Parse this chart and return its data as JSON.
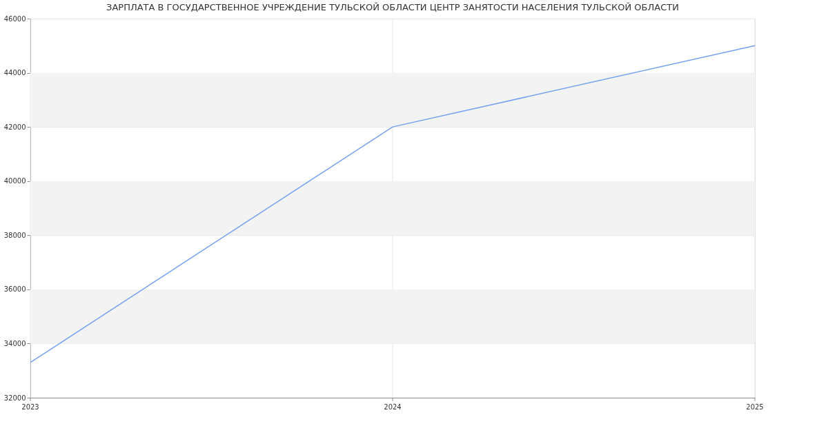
{
  "chart_data": {
    "type": "line",
    "title": "ЗАРПЛАТА В ГОСУДАРСТВЕННОЕ УЧРЕЖДЕНИЕ ТУЛЬСКОЙ ОБЛАСТИ ЦЕНТР ЗАНЯТОСТИ НАСЕЛЕНИЯ ТУЛЬСКОЙ ОБЛАСТИ",
    "x": [
      2023,
      2024,
      2025
    ],
    "series": [
      {
        "color": "#73a0f0",
        "values": [
          33300,
          42000,
          45000
        ]
      }
    ],
    "xlim": [
      2023,
      2025
    ],
    "xticks": [
      2023,
      2024,
      2025
    ],
    "ylim": [
      32000,
      46000
    ],
    "yticks": [
      32000,
      34000,
      36000,
      38000,
      40000,
      42000,
      44000,
      46000
    ],
    "bands": [
      {
        "axis": "y",
        "from": 34000,
        "to": 36000,
        "color": "#f3f3f3"
      },
      {
        "axis": "y",
        "from": 38000,
        "to": 40000,
        "color": "#f3f3f3"
      },
      {
        "axis": "y",
        "from": 42000,
        "to": 44000,
        "color": "#f3f3f3"
      }
    ],
    "grid": true,
    "marker": "none",
    "line_style": "solid",
    "legend": false
  }
}
